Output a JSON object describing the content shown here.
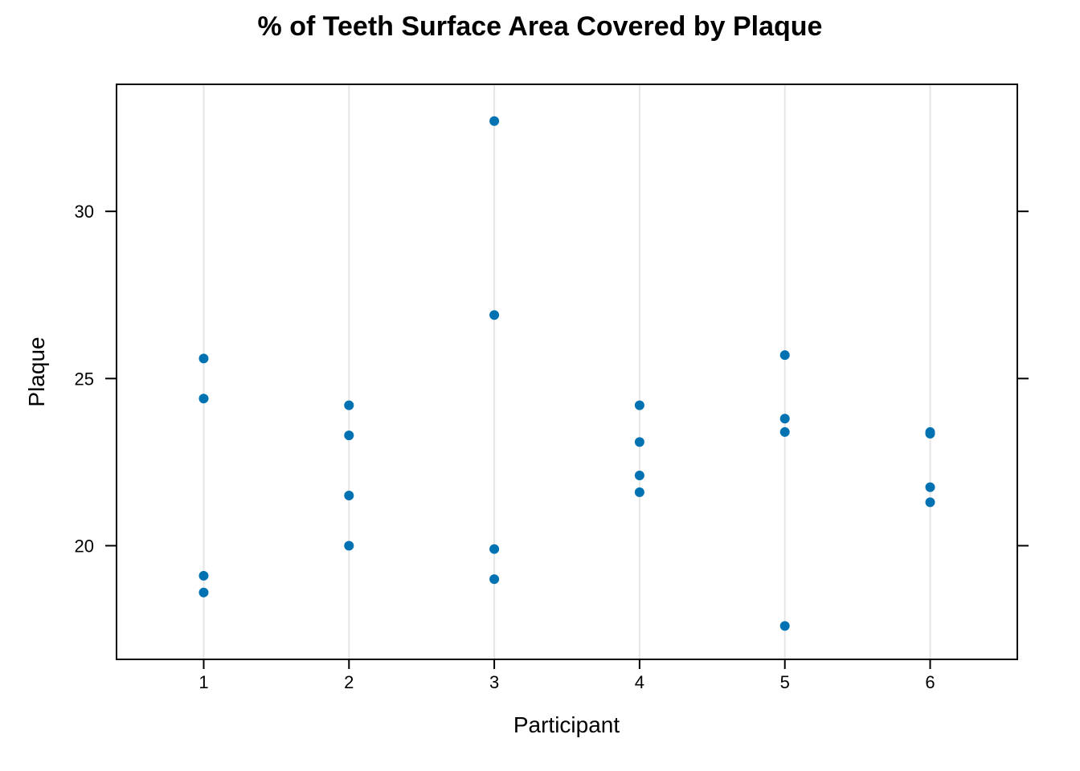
{
  "chart_data": {
    "type": "scatter",
    "title": "% of Teeth Surface Area Covered by Plaque",
    "xlabel": "Participant",
    "ylabel": "Plaque",
    "x_categories": [
      "1",
      "2",
      "3",
      "4",
      "5",
      "6"
    ],
    "y_ticks": [
      20,
      25,
      30
    ],
    "ylim": [
      16.6,
      33.8
    ],
    "xlim": [
      0.4,
      6.6
    ],
    "vertical_reference_lines": true,
    "point_color": "#0072B2",
    "gridline_color": "#E6E6E6",
    "points": [
      {
        "x": 1,
        "y": 25.6
      },
      {
        "x": 1,
        "y": 24.4
      },
      {
        "x": 1,
        "y": 19.1
      },
      {
        "x": 1,
        "y": 18.6
      },
      {
        "x": 2,
        "y": 24.2
      },
      {
        "x": 2,
        "y": 23.3
      },
      {
        "x": 2,
        "y": 21.5
      },
      {
        "x": 2,
        "y": 20.0
      },
      {
        "x": 3,
        "y": 32.7
      },
      {
        "x": 3,
        "y": 26.9
      },
      {
        "x": 3,
        "y": 19.9
      },
      {
        "x": 3,
        "y": 19.0
      },
      {
        "x": 4,
        "y": 24.2
      },
      {
        "x": 4,
        "y": 23.1
      },
      {
        "x": 4,
        "y": 22.1
      },
      {
        "x": 4,
        "y": 21.6
      },
      {
        "x": 5,
        "y": 25.7
      },
      {
        "x": 5,
        "y": 23.8
      },
      {
        "x": 5,
        "y": 23.4
      },
      {
        "x": 5,
        "y": 17.6
      },
      {
        "x": 6,
        "y": 23.4
      },
      {
        "x": 6,
        "y": 23.35
      },
      {
        "x": 6,
        "y": 21.75
      },
      {
        "x": 6,
        "y": 21.3
      }
    ]
  }
}
